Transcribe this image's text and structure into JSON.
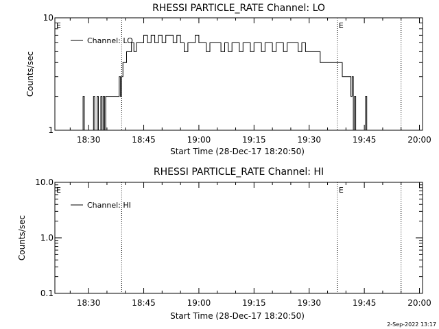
{
  "footer": {
    "timestamp": "2-Sep-2022 13:17"
  },
  "colors": {
    "line": "#000000",
    "background": "#ffffff"
  },
  "chart_data": [
    {
      "type": "line",
      "title": "RHESSI PARTICLE_RATE Channel: LO",
      "xlabel": "Start Time (28-Dec-17 18:20:50)",
      "ylabel": "Counts/sec",
      "yscale": "log",
      "ylim": [
        1,
        10
      ],
      "yticks": [
        1,
        10
      ],
      "ytick_labels": [
        "1",
        "10"
      ],
      "xlim": [
        "18:20:50",
        "20:00:50"
      ],
      "xticks": [
        "18:30",
        "18:45",
        "19:00",
        "19:15",
        "19:30",
        "19:45",
        "20:00"
      ],
      "legend": {
        "placement": "top-left",
        "entries": [
          "Channel: LO"
        ]
      },
      "markers": [
        {
          "time": "18:20:50",
          "label": "E"
        },
        {
          "time": "18:39:00",
          "label": ""
        },
        {
          "time": "19:37:40",
          "label": "E"
        },
        {
          "time": "19:55:00",
          "label": ""
        }
      ],
      "series": [
        {
          "name": "Channel: LO",
          "x": [
            "18:28:10",
            "18:28:30",
            "18:28:50",
            "18:29:10",
            "18:31:00",
            "18:31:20",
            "18:31:40",
            "18:32:00",
            "18:32:20",
            "18:32:40",
            "18:33:00",
            "18:33:20",
            "18:33:40",
            "18:34:00",
            "18:34:20",
            "18:34:40",
            "18:35:20",
            "18:36:20",
            "18:37:20",
            "18:38:00",
            "18:38:20",
            "18:38:40",
            "18:39:00",
            "18:39:20",
            "18:39:40",
            "18:40:20",
            "18:41:00",
            "18:41:40",
            "18:42:20",
            "18:43:00",
            "18:43:40",
            "18:44:20",
            "18:45:00",
            "18:46:00",
            "18:47:00",
            "18:48:00",
            "18:49:00",
            "18:50:00",
            "18:51:00",
            "18:52:00",
            "18:53:00",
            "18:54:00",
            "18:55:00",
            "18:56:00",
            "18:57:00",
            "18:58:00",
            "18:59:00",
            "19:00:00",
            "19:01:00",
            "19:02:00",
            "19:03:00",
            "19:04:00",
            "19:05:00",
            "19:06:00",
            "19:07:00",
            "19:08:00",
            "19:09:00",
            "19:10:00",
            "19:11:00",
            "19:12:00",
            "19:13:00",
            "19:14:00",
            "19:15:00",
            "19:16:00",
            "19:17:00",
            "19:18:00",
            "19:19:00",
            "19:20:00",
            "19:21:00",
            "19:22:00",
            "19:23:00",
            "19:24:00",
            "19:25:00",
            "19:26:00",
            "19:27:00",
            "19:28:00",
            "19:29:00",
            "19:30:00",
            "19:31:00",
            "19:32:00",
            "19:33:00",
            "19:34:00",
            "19:35:00",
            "19:36:00",
            "19:37:00",
            "19:38:00",
            "19:39:00",
            "19:40:00",
            "19:41:00",
            "19:41:20",
            "19:41:40",
            "19:42:00",
            "19:42:20",
            "19:42:40",
            "19:43:00",
            "19:45:00",
            "19:45:20",
            "19:45:40",
            "19:46:00"
          ],
          "values": [
            1,
            2,
            1,
            1,
            1,
            2,
            1,
            1,
            2,
            1,
            1,
            2,
            1,
            2,
            1,
            2,
            2,
            2,
            2,
            2,
            3,
            2,
            3,
            4,
            4,
            5,
            5,
            6,
            5,
            6,
            6,
            6,
            7,
            6,
            7,
            6,
            7,
            6,
            7,
            7,
            6,
            7,
            6,
            5,
            6,
            6,
            7,
            6,
            6,
            5,
            6,
            6,
            6,
            5,
            6,
            5,
            6,
            6,
            5,
            6,
            6,
            5,
            6,
            6,
            5,
            6,
            6,
            5,
            6,
            6,
            5,
            6,
            6,
            6,
            5,
            6,
            5,
            5,
            5,
            5,
            4,
            4,
            4,
            4,
            4,
            4,
            3,
            3,
            3,
            2,
            3,
            1,
            2,
            1,
            1,
            1,
            2,
            1,
            1
          ]
        }
      ]
    },
    {
      "type": "line",
      "title": "RHESSI PARTICLE_RATE Channel: HI",
      "xlabel": "Start Time (28-Dec-17 18:20:50)",
      "ylabel": "Counts/sec",
      "yscale": "log",
      "ylim": [
        0.1,
        10
      ],
      "yticks": [
        0.1,
        1.0,
        10.0
      ],
      "ytick_labels": [
        "0.1",
        "1.0",
        "10.0"
      ],
      "xlim": [
        "18:20:50",
        "20:00:50"
      ],
      "xticks": [
        "18:30",
        "18:45",
        "19:00",
        "19:15",
        "19:30",
        "19:45",
        "20:00"
      ],
      "legend": {
        "placement": "top-left",
        "entries": [
          "Channel: HI"
        ]
      },
      "markers": [
        {
          "time": "18:20:50",
          "label": "E"
        },
        {
          "time": "18:39:00",
          "label": ""
        },
        {
          "time": "19:37:40",
          "label": "E"
        },
        {
          "time": "19:55:00",
          "label": ""
        }
      ],
      "series": [
        {
          "name": "Channel: HI",
          "x": [],
          "values": []
        }
      ]
    }
  ]
}
